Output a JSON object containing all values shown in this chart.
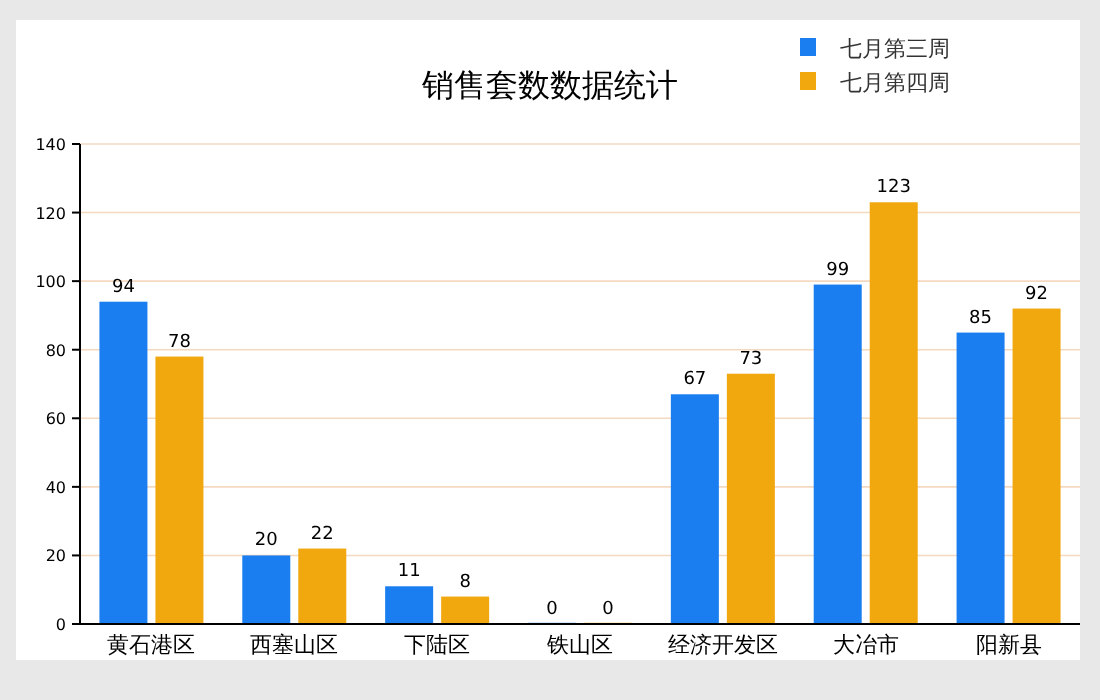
{
  "chart_data": {
    "type": "bar",
    "title": "销售套数数据统计",
    "categories": [
      "黄石港区",
      "西塞山区",
      "下陆区",
      "铁山区",
      "经济开发区",
      "大冶市",
      "阳新县"
    ],
    "series": [
      {
        "name": "七月第三周",
        "color": "#1a7ef0",
        "values": [
          94,
          20,
          11,
          0,
          67,
          99,
          85
        ]
      },
      {
        "name": "七月第四周",
        "color": "#f0a80e",
        "values": [
          78,
          22,
          8,
          0,
          73,
          123,
          92
        ]
      }
    ],
    "ylim": [
      0,
      140
    ],
    "yticks": [
      0,
      20,
      40,
      60,
      80,
      100,
      120,
      140
    ],
    "grid": "y",
    "legend": "top right",
    "data_labels": true
  }
}
